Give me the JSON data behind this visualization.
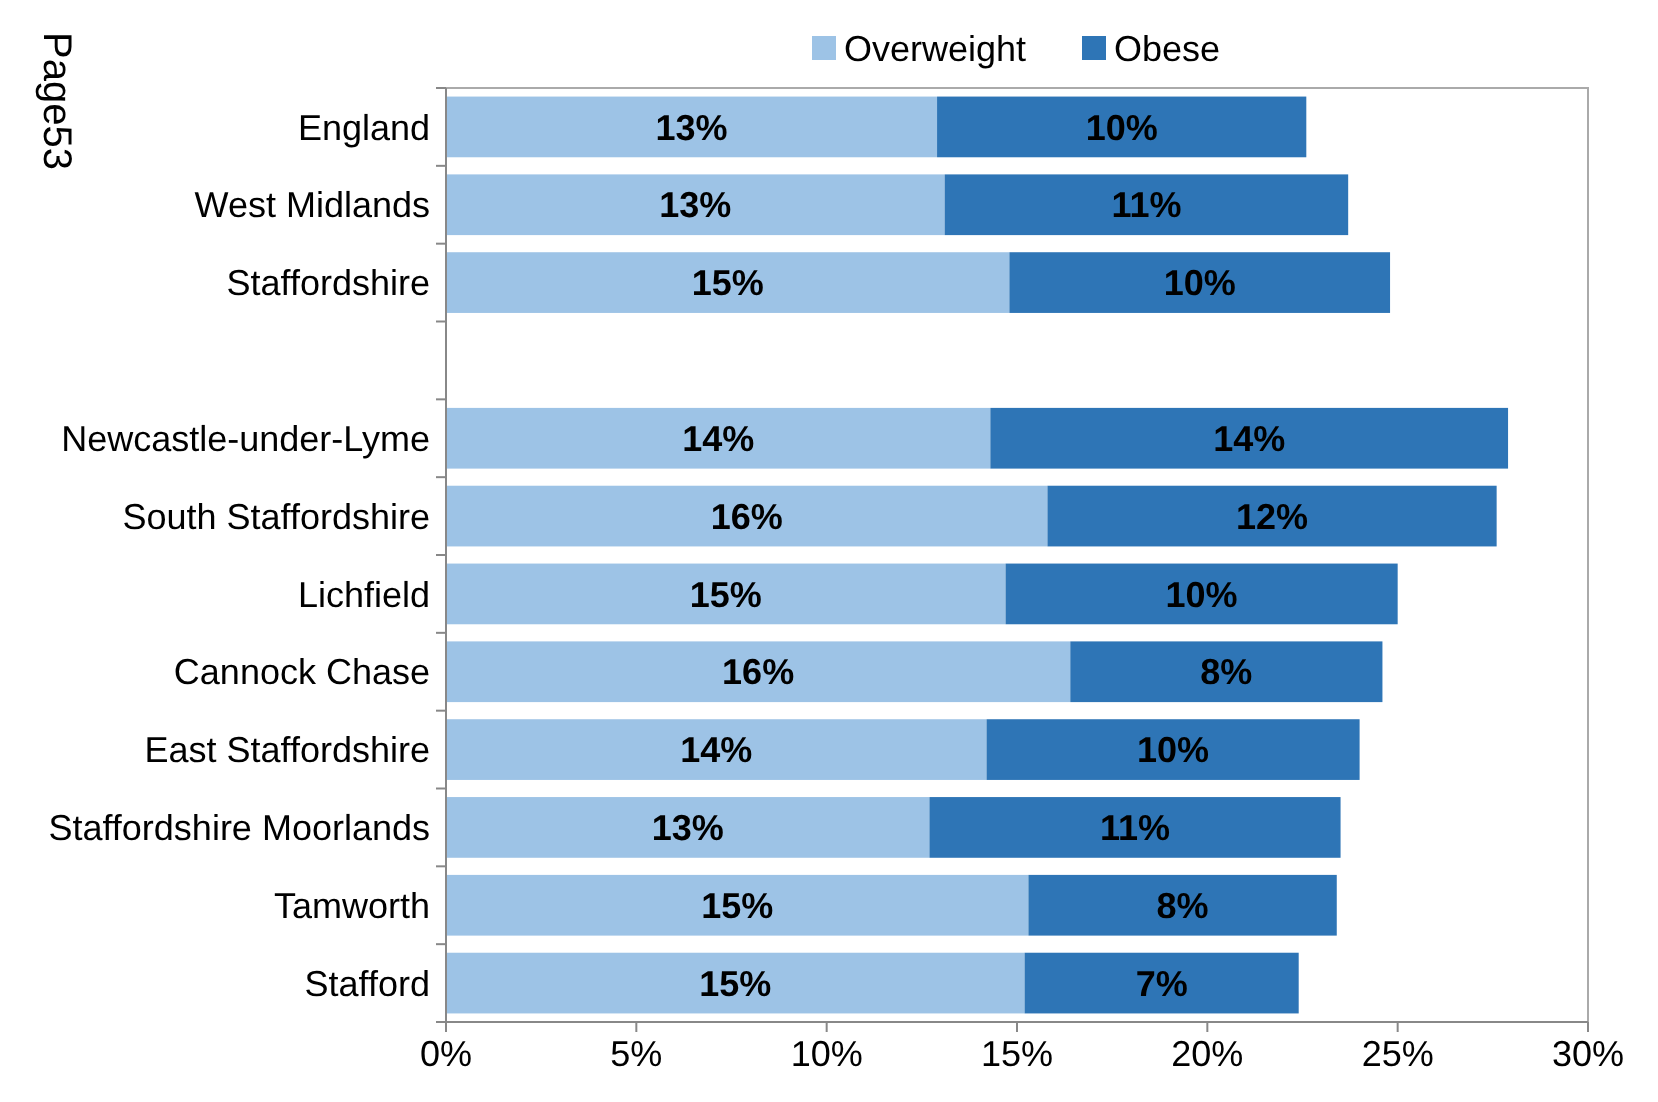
{
  "chart_data": {
    "type": "bar",
    "orientation": "horizontal",
    "stacked": true,
    "categories": [
      "England",
      "West Midlands",
      "Staffordshire",
      null,
      "Newcastle-under-Lyme",
      "South Staffordshire",
      "Lichfield",
      "Cannock Chase",
      "East Staffordshire",
      "Staffordshire Moorlands",
      "Tamworth",
      "Stafford"
    ],
    "series": [
      {
        "name": "Overweight",
        "color": "#9dc3e6",
        "values": [
          12.9,
          13.1,
          14.8,
          null,
          14.3,
          15.8,
          14.7,
          16.4,
          14.2,
          12.7,
          15.3,
          15.2
        ],
        "value_labels": [
          "13%",
          "13%",
          "15%",
          null,
          "14%",
          "16%",
          "15%",
          "16%",
          "14%",
          "13%",
          "15%",
          "15%"
        ]
      },
      {
        "name": "Obese",
        "color": "#2e75b6",
        "values": [
          9.7,
          10.6,
          10.0,
          null,
          13.6,
          11.8,
          10.3,
          8.2,
          9.8,
          10.8,
          8.1,
          7.2
        ],
        "value_labels": [
          "10%",
          "11%",
          "10%",
          null,
          "14%",
          "12%",
          "10%",
          "8%",
          "10%",
          "11%",
          "8%",
          "7%"
        ]
      }
    ],
    "xlim": [
      0,
      30
    ],
    "xticks": [
      {
        "value": 0,
        "label": "0%"
      },
      {
        "value": 5,
        "label": "5%"
      },
      {
        "value": 10,
        "label": "10%"
      },
      {
        "value": 15,
        "label": "15%"
      },
      {
        "value": 20,
        "label": "20%"
      },
      {
        "value": 25,
        "label": "25%"
      },
      {
        "value": 30,
        "label": "30%"
      }
    ],
    "grid": false,
    "legend": "top",
    "annotations": [
      "Page53"
    ]
  }
}
